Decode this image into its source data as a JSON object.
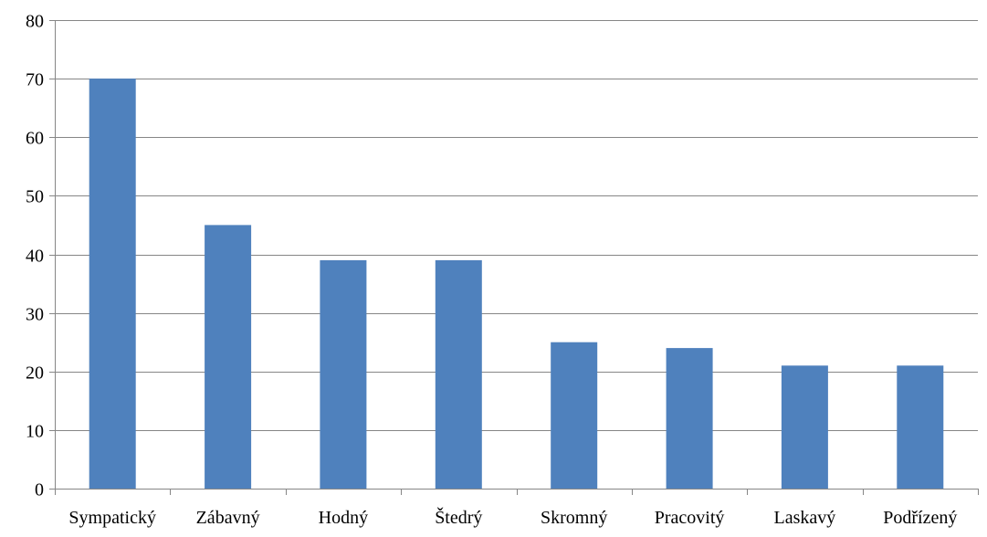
{
  "chart_data": {
    "type": "bar",
    "categories": [
      "Sympatický",
      "Zábavný",
      "Hodný",
      "Štedrý",
      "Skromný",
      "Pracovitý",
      "Laskavý",
      "Podřízený"
    ],
    "values": [
      70,
      45,
      39,
      39,
      25,
      24,
      21,
      21
    ],
    "ylim": [
      0,
      80
    ],
    "yticks": [
      0,
      10,
      20,
      30,
      40,
      50,
      60,
      70,
      80
    ],
    "grid": true,
    "legend": "none",
    "bar_color": "#4F81BD",
    "grid_color": "#868686",
    "axis_color": "#868686"
  }
}
